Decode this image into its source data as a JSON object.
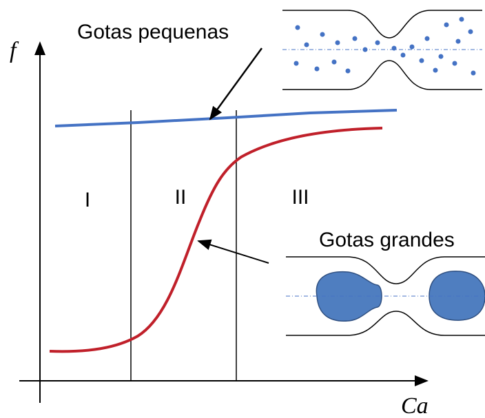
{
  "axes": {
    "y_label": "f",
    "x_label": "Ca"
  },
  "regions": [
    "I",
    "II",
    "III"
  ],
  "annotations": [
    {
      "label": "Gotas pequenas"
    },
    {
      "label": "Gotas grandes"
    }
  ]
}
